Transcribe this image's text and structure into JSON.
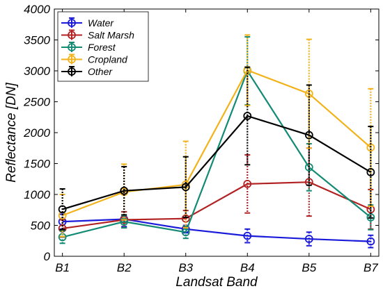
{
  "chart_data": {
    "type": "line",
    "title": "",
    "xlabel": "Landsat Band",
    "ylabel": "Reflectance [DN]",
    "categories": [
      "B1",
      "B2",
      "B3",
      "B4",
      "B5",
      "B7"
    ],
    "ylim": [
      0,
      4000
    ],
    "yticks": [
      0,
      500,
      1000,
      1500,
      2000,
      2500,
      3000,
      3500,
      4000
    ],
    "grid": false,
    "legend_position": "top-left",
    "series": [
      {
        "name": "Water",
        "color": "#1a1adb",
        "values": [
          560,
          600,
          440,
          330,
          280,
          240
        ],
        "err_low": [
          120,
          120,
          60,
          110,
          110,
          100
        ],
        "err_high": [
          120,
          120,
          60,
          110,
          110,
          100
        ]
      },
      {
        "name": "Salt Marsh",
        "color": "#b22222",
        "values": [
          450,
          590,
          610,
          1170,
          1200,
          760
        ],
        "err_low": [
          140,
          130,
          130,
          470,
          550,
          320
        ],
        "err_high": [
          140,
          130,
          130,
          470,
          550,
          320
        ]
      },
      {
        "name": "Forest",
        "color": "#138a73",
        "values": [
          310,
          560,
          390,
          3000,
          1440,
          630
        ],
        "err_low": [
          100,
          100,
          100,
          550,
          380,
          200
        ],
        "err_high": [
          100,
          100,
          100,
          550,
          380,
          200
        ]
      },
      {
        "name": "Cropland",
        "color": "#f2b21a",
        "values": [
          660,
          1040,
          1160,
          3010,
          2630,
          1760
        ],
        "err_low": [
          340,
          450,
          700,
          570,
          880,
          950
        ],
        "err_high": [
          340,
          450,
          700,
          570,
          880,
          950
        ]
      },
      {
        "name": "Other",
        "color": "#000000",
        "values": [
          760,
          1060,
          1120,
          2270,
          1960,
          1360
        ],
        "err_low": [
          330,
          390,
          490,
          790,
          810,
          740
        ],
        "err_high": [
          330,
          390,
          490,
          790,
          810,
          740
        ]
      }
    ]
  }
}
